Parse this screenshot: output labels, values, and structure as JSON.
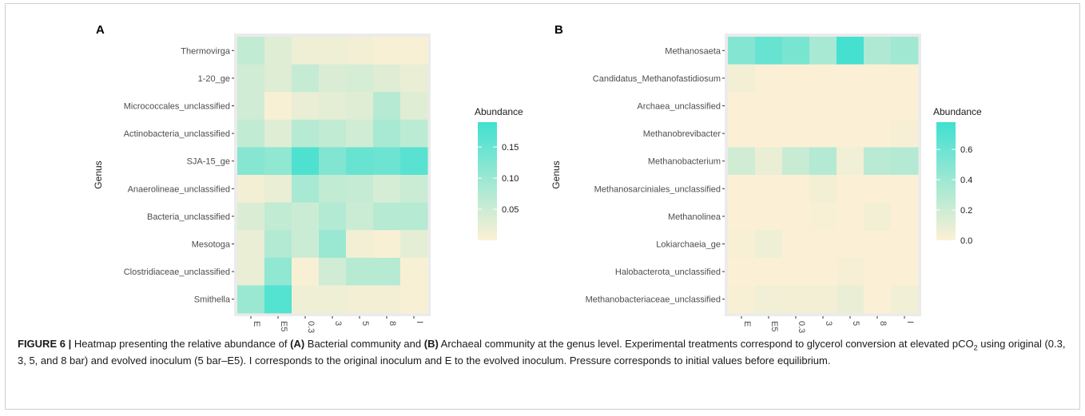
{
  "chart_data": [
    {
      "type": "heatmap",
      "panel_letter": "A",
      "ylabel": "Genus",
      "xlabel": "",
      "x_categories": [
        "E",
        "E5",
        "0.3",
        "3",
        "5",
        "8",
        "I"
      ],
      "y_categories": [
        "Thermovirga",
        "1-20_ge",
        "Micrococcales_unclassified",
        "Actinobacteria_unclassified",
        "SJA-15_ge",
        "Anaerolineae_unclassified",
        "Bacteria_unclassified",
        "Mesotoga",
        "Clostridiaceae_unclassified",
        "Smithella"
      ],
      "values": [
        [
          0.06,
          0.03,
          0.015,
          0.015,
          0.01,
          0.005,
          0.005
        ],
        [
          0.045,
          0.03,
          0.055,
          0.035,
          0.04,
          0.03,
          0.02
        ],
        [
          0.045,
          0.005,
          0.02,
          0.025,
          0.03,
          0.07,
          0.03
        ],
        [
          0.06,
          0.03,
          0.07,
          0.06,
          0.045,
          0.085,
          0.065
        ],
        [
          0.12,
          0.11,
          0.175,
          0.125,
          0.15,
          0.145,
          0.165
        ],
        [
          0.01,
          0.02,
          0.085,
          0.06,
          0.055,
          0.04,
          0.05
        ],
        [
          0.035,
          0.06,
          0.05,
          0.075,
          0.05,
          0.07,
          0.07
        ],
        [
          0.02,
          0.075,
          0.05,
          0.1,
          0.01,
          0.005,
          0.025
        ],
        [
          0.02,
          0.11,
          0.005,
          0.045,
          0.07,
          0.07,
          0.005
        ],
        [
          0.1,
          0.17,
          0.015,
          0.015,
          0.01,
          0.01,
          0.005
        ]
      ],
      "legend": {
        "title": "Abundance",
        "range": [
          0.0,
          0.19
        ],
        "ticks": [
          0.15,
          0.1,
          0.05
        ],
        "tick_labels": [
          "0.15",
          "0.10",
          "0.05"
        ]
      },
      "color_low": "#fdf0d5",
      "color_high": "#40e0d0"
    },
    {
      "type": "heatmap",
      "panel_letter": "B",
      "ylabel": "Genus",
      "xlabel": "",
      "x_categories": [
        "E",
        "E5",
        "0.3",
        "3",
        "5",
        "8",
        "I"
      ],
      "y_categories": [
        "Methanosaeta",
        "Candidatus_Methanofastidiosum",
        "Archaea_unclassified",
        "Methanobrevibacter",
        "Methanobacterium",
        "Methanosarciniales_unclassified",
        "Methanolinea",
        "Lokiarchaeia_ge",
        "Halobacterota_unclassified",
        "Methanobacteriaceae_unclassified"
      ],
      "values": [
        [
          0.5,
          0.62,
          0.55,
          0.35,
          0.76,
          0.32,
          0.38
        ],
        [
          0.04,
          0.01,
          0.01,
          0.01,
          0.01,
          0.01,
          0.01
        ],
        [
          0.01,
          0.01,
          0.01,
          0.01,
          0.01,
          0.01,
          0.01
        ],
        [
          0.01,
          0.01,
          0.01,
          0.01,
          0.01,
          0.01,
          0.03
        ],
        [
          0.18,
          0.08,
          0.22,
          0.3,
          0.05,
          0.28,
          0.3
        ],
        [
          0.01,
          0.01,
          0.01,
          0.04,
          0.01,
          0.01,
          0.01
        ],
        [
          0.01,
          0.01,
          0.01,
          0.02,
          0.01,
          0.04,
          0.01
        ],
        [
          0.02,
          0.06,
          0.01,
          0.01,
          0.01,
          0.01,
          0.01
        ],
        [
          0.01,
          0.01,
          0.01,
          0.01,
          0.03,
          0.01,
          0.01
        ],
        [
          0.02,
          0.05,
          0.04,
          0.04,
          0.08,
          0.01,
          0.05
        ]
      ],
      "legend": {
        "title": "Abundance",
        "range": [
          0.0,
          0.78
        ],
        "ticks": [
          0.6,
          0.4,
          0.2,
          0.0
        ],
        "tick_labels": [
          "0.6",
          "0.4",
          "0.2",
          "0.0"
        ]
      },
      "color_low": "#fdf0d5",
      "color_high": "#40e0d0"
    }
  ],
  "caption": {
    "lead": "FIGURE 6 |",
    "t1": " Heatmap presenting the relative abundance of ",
    "b1": "(A)",
    "t2": " Bacterial community and ",
    "b2": "(B)",
    "t3": " Archaeal community at the genus level. Experimental treatments correspond to glycerol conversion at elevated pCO",
    "sub": "2",
    "t4": " using original (0.3, 3, 5, and 8 bar) and evolved inoculum (5 bar–E5). I corresponds to the original inoculum and E to the evolved inoculum. Pressure corresponds to initial values before equilibrium."
  }
}
